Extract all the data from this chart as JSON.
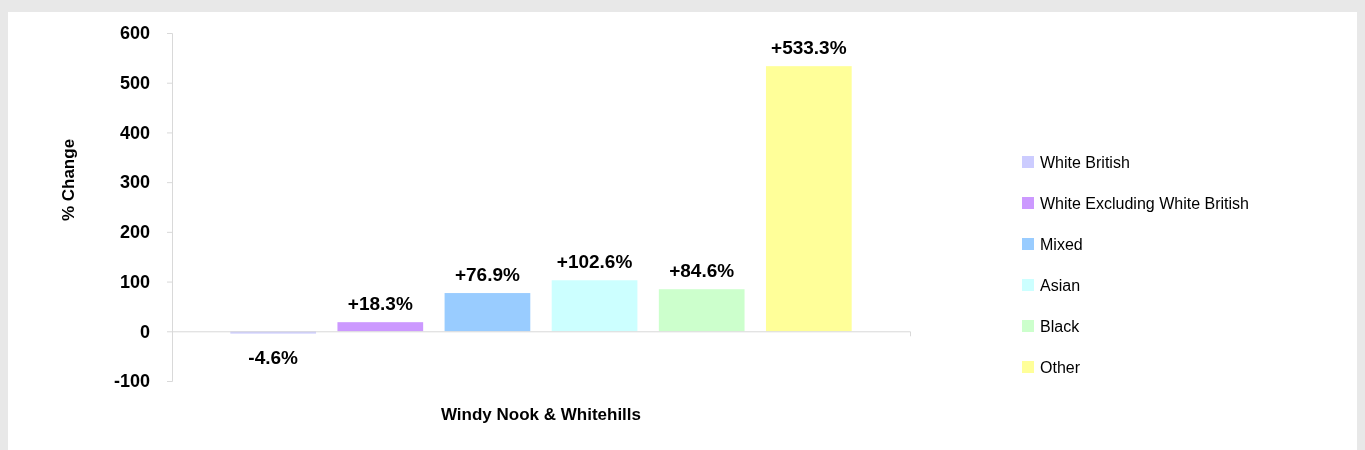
{
  "chart_data": {
    "type": "bar",
    "categories": [
      "Windy Nook & Whitehills"
    ],
    "ylabel": "% Change",
    "ylim": [
      -100,
      600
    ],
    "yticks": [
      -100,
      0,
      100,
      200,
      300,
      400,
      500,
      600
    ],
    "grid": false,
    "legend": "right",
    "series": [
      {
        "name": "White British",
        "color": "#ccccff",
        "values": [
          -4.6
        ],
        "value_labels": [
          "-4.6%"
        ]
      },
      {
        "name": "White Excluding White British",
        "color": "#cc99ff",
        "values": [
          18.3
        ],
        "value_labels": [
          "+18.3%"
        ]
      },
      {
        "name": "Mixed",
        "color": "#99ccff",
        "values": [
          76.9
        ],
        "value_labels": [
          "+76.9%"
        ]
      },
      {
        "name": "Asian",
        "color": "#ccffff",
        "values": [
          102.6
        ],
        "value_labels": [
          "+102.6%"
        ]
      },
      {
        "name": "Black",
        "color": "#ccffcc",
        "values": [
          84.6
        ],
        "value_labels": [
          "+84.6%"
        ]
      },
      {
        "name": "Other",
        "color": "#ffff99",
        "values": [
          533.3
        ],
        "value_labels": [
          "+533.3%"
        ]
      }
    ]
  }
}
